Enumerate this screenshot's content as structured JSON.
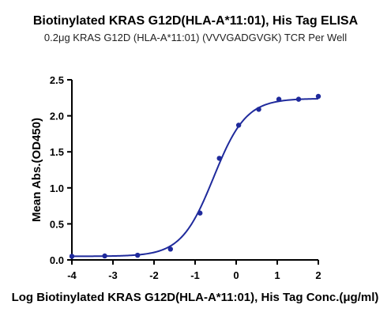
{
  "chart_data": {
    "type": "scatter",
    "title": "Biotinylated KRAS G12D(HLA-A*11:01), His Tag ELISA",
    "subtitle": "0.2μg KRAS G12D (HLA-A*11:01) (VVVGADGVGK) TCR Per Well",
    "xlabel": "Log Biotinylated KRAS G12D(HLA-A*11:01), His Tag Conc.(μg/ml)",
    "ylabel": "Mean Abs.(OD450)",
    "xlim": [
      -4,
      2
    ],
    "ylim": [
      0,
      2.5
    ],
    "xticks": [
      "-4",
      "-3",
      "-2",
      "-1",
      "0",
      "1",
      "2"
    ],
    "yticks": [
      "0.0",
      "0.5",
      "1.0",
      "1.5",
      "2.0",
      "2.5"
    ],
    "grid": false,
    "colors": {
      "series": "#1f2a9c"
    },
    "series": [
      {
        "x": [
          -4.0,
          -3.2,
          -2.4,
          -1.6,
          -0.88,
          -0.41,
          0.06,
          0.55,
          1.04,
          1.52,
          2.0
        ],
        "y": [
          0.05,
          0.055,
          0.065,
          0.15,
          0.65,
          1.41,
          1.87,
          2.09,
          2.23,
          2.23,
          2.27
        ]
      }
    ],
    "fit": {
      "bottom": 0.05,
      "top": 2.24,
      "logEC50": -0.55,
      "hill": 1.1
    }
  }
}
